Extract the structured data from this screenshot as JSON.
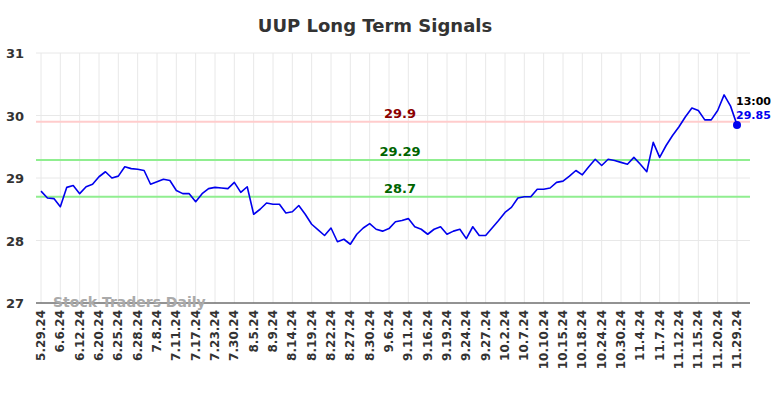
{
  "chart_data": {
    "type": "line",
    "title": "UUP Long Term Signals",
    "watermark": "Stock Traders Daily",
    "color": "#0000ee",
    "grid": true,
    "ylim": [
      27,
      31
    ],
    "yticks": [
      27,
      28,
      29,
      30,
      31
    ],
    "categories": [
      "5.29.24",
      null,
      null,
      "6.6.24",
      null,
      null,
      "6.12.24",
      null,
      null,
      "6.20.24",
      null,
      null,
      "6.25.24",
      null,
      null,
      "6.28.24",
      null,
      null,
      "7.8.24",
      null,
      null,
      "7.11.24",
      null,
      null,
      "7.17.24",
      null,
      null,
      "7.23.24",
      null,
      null,
      "7.30.24",
      null,
      null,
      "8.5.24",
      null,
      null,
      "8.9.24",
      null,
      null,
      "8.14.24",
      null,
      null,
      "8.19.24",
      null,
      null,
      "8.22.24",
      null,
      null,
      "8.27.24",
      null,
      null,
      "8.30.24",
      null,
      null,
      "9.6.24",
      null,
      null,
      "9.11.24",
      null,
      null,
      "9.16.24",
      null,
      null,
      "9.19.24",
      null,
      null,
      "9.24.24",
      null,
      null,
      "9.27.24",
      null,
      null,
      "10.2.24",
      null,
      null,
      "10.7.24",
      null,
      null,
      "10.10.24",
      null,
      null,
      "10.15.24",
      null,
      null,
      "10.18.24",
      null,
      null,
      "10.24.24",
      null,
      null,
      "10.30.24",
      null,
      null,
      "11.4.24",
      null,
      null,
      "11.7.24",
      null,
      null,
      "11.12.24",
      null,
      null,
      "11.15.24",
      null,
      null,
      "11.20.24",
      null,
      null,
      "11.29.24"
    ],
    "values": [
      28.79,
      28.68,
      28.67,
      28.54,
      28.85,
      28.88,
      28.75,
      28.86,
      28.9,
      29.02,
      29.1,
      29.0,
      29.03,
      29.18,
      29.15,
      29.14,
      29.12,
      28.9,
      28.94,
      28.98,
      28.96,
      28.8,
      28.75,
      28.75,
      28.62,
      28.75,
      28.83,
      28.85,
      28.84,
      28.83,
      28.93,
      28.77,
      28.86,
      28.42,
      28.5,
      28.6,
      28.58,
      28.58,
      28.44,
      28.46,
      28.56,
      28.42,
      28.26,
      28.17,
      28.08,
      28.2,
      27.98,
      28.02,
      27.94,
      28.1,
      28.2,
      28.27,
      28.18,
      28.15,
      28.19,
      28.3,
      28.32,
      28.35,
      28.22,
      28.18,
      28.1,
      28.18,
      28.22,
      28.1,
      28.15,
      28.18,
      28.03,
      28.22,
      28.08,
      28.08,
      28.2,
      28.32,
      28.45,
      28.53,
      28.68,
      28.7,
      28.7,
      28.82,
      28.82,
      28.84,
      28.93,
      28.95,
      29.03,
      29.12,
      29.05,
      29.18,
      29.3,
      29.2,
      29.3,
      29.28,
      29.25,
      29.22,
      29.33,
      29.22,
      29.1,
      29.57,
      29.33,
      29.52,
      29.68,
      29.82,
      29.98,
      30.12,
      30.08,
      29.93,
      29.93,
      30.08,
      30.33,
      30.15,
      29.85
    ],
    "last_time": "13:00",
    "signal_lines": [
      {
        "value": 29.9,
        "color": "#ffcccc",
        "label_color": "#8b0000"
      },
      {
        "value": 29.29,
        "color": "#90ee90",
        "label_color": "#006400"
      },
      {
        "value": 28.7,
        "color": "#90ee90",
        "label_color": "#006400"
      }
    ]
  }
}
